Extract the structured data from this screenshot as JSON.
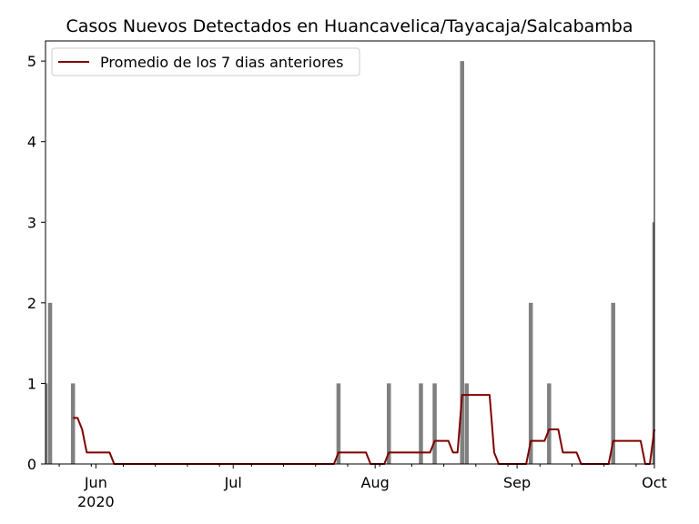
{
  "chart_data": {
    "type": "bar",
    "title": "Casos Nuevos Detectados en Huancavelica/Tayacaja/Salcabamba",
    "xlabel": "",
    "ylabel": "",
    "xlim": [
      "2020-05-21",
      "2020-10-01"
    ],
    "ylim": [
      0,
      5.25
    ],
    "yticks": [
      0,
      1,
      2,
      3,
      4,
      5
    ],
    "xticks": [
      {
        "date": "2020-06-01",
        "label": "Jun",
        "sublabel": "2020"
      },
      {
        "date": "2020-07-01",
        "label": "Jul",
        "sublabel": ""
      },
      {
        "date": "2020-08-01",
        "label": "Aug",
        "sublabel": ""
      },
      {
        "date": "2020-09-01",
        "label": "Sep",
        "sublabel": ""
      },
      {
        "date": "2020-10-01",
        "label": "Oct",
        "sublabel": ""
      }
    ],
    "grid": false,
    "legend_position": "top-left",
    "bar_color": "#808080",
    "line_color": "#800000",
    "bars": [
      {
        "date": "2020-05-21",
        "value": 1
      },
      {
        "date": "2020-05-22",
        "value": 2
      },
      {
        "date": "2020-05-27",
        "value": 1
      },
      {
        "date": "2020-07-24",
        "value": 1
      },
      {
        "date": "2020-08-04",
        "value": 1
      },
      {
        "date": "2020-08-11",
        "value": 1
      },
      {
        "date": "2020-08-14",
        "value": 1
      },
      {
        "date": "2020-08-20",
        "value": 5
      },
      {
        "date": "2020-08-21",
        "value": 1
      },
      {
        "date": "2020-09-04",
        "value": 2
      },
      {
        "date": "2020-09-08",
        "value": 1
      },
      {
        "date": "2020-09-22",
        "value": 2
      },
      {
        "date": "2020-10-01",
        "value": 3
      }
    ],
    "series": [
      {
        "name": "Promedio de los 7 dias anteriores",
        "points": [
          {
            "date": "2020-05-27",
            "value": 0.571
          },
          {
            "date": "2020-05-28",
            "value": 0.571
          },
          {
            "date": "2020-05-29",
            "value": 0.429
          },
          {
            "date": "2020-05-30",
            "value": 0.143
          },
          {
            "date": "2020-06-04",
            "value": 0.143
          },
          {
            "date": "2020-06-05",
            "value": 0
          },
          {
            "date": "2020-07-23",
            "value": 0
          },
          {
            "date": "2020-07-24",
            "value": 0.143
          },
          {
            "date": "2020-07-30",
            "value": 0.143
          },
          {
            "date": "2020-07-31",
            "value": 0
          },
          {
            "date": "2020-08-03",
            "value": 0
          },
          {
            "date": "2020-08-04",
            "value": 0.143
          },
          {
            "date": "2020-08-13",
            "value": 0.143
          },
          {
            "date": "2020-08-14",
            "value": 0.286
          },
          {
            "date": "2020-08-17",
            "value": 0.286
          },
          {
            "date": "2020-08-18",
            "value": 0.143
          },
          {
            "date": "2020-08-19",
            "value": 0.143
          },
          {
            "date": "2020-08-20",
            "value": 0.857
          },
          {
            "date": "2020-08-26",
            "value": 0.857
          },
          {
            "date": "2020-08-27",
            "value": 0.143
          },
          {
            "date": "2020-08-28",
            "value": 0
          },
          {
            "date": "2020-09-03",
            "value": 0
          },
          {
            "date": "2020-09-04",
            "value": 0.286
          },
          {
            "date": "2020-09-07",
            "value": 0.286
          },
          {
            "date": "2020-09-08",
            "value": 0.429
          },
          {
            "date": "2020-09-10",
            "value": 0.429
          },
          {
            "date": "2020-09-11",
            "value": 0.143
          },
          {
            "date": "2020-09-14",
            "value": 0.143
          },
          {
            "date": "2020-09-15",
            "value": 0
          },
          {
            "date": "2020-09-21",
            "value": 0
          },
          {
            "date": "2020-09-22",
            "value": 0.286
          },
          {
            "date": "2020-09-28",
            "value": 0.286
          },
          {
            "date": "2020-09-29",
            "value": 0
          },
          {
            "date": "2020-09-30",
            "value": 0
          },
          {
            "date": "2020-10-01",
            "value": 0.429
          }
        ]
      }
    ]
  }
}
